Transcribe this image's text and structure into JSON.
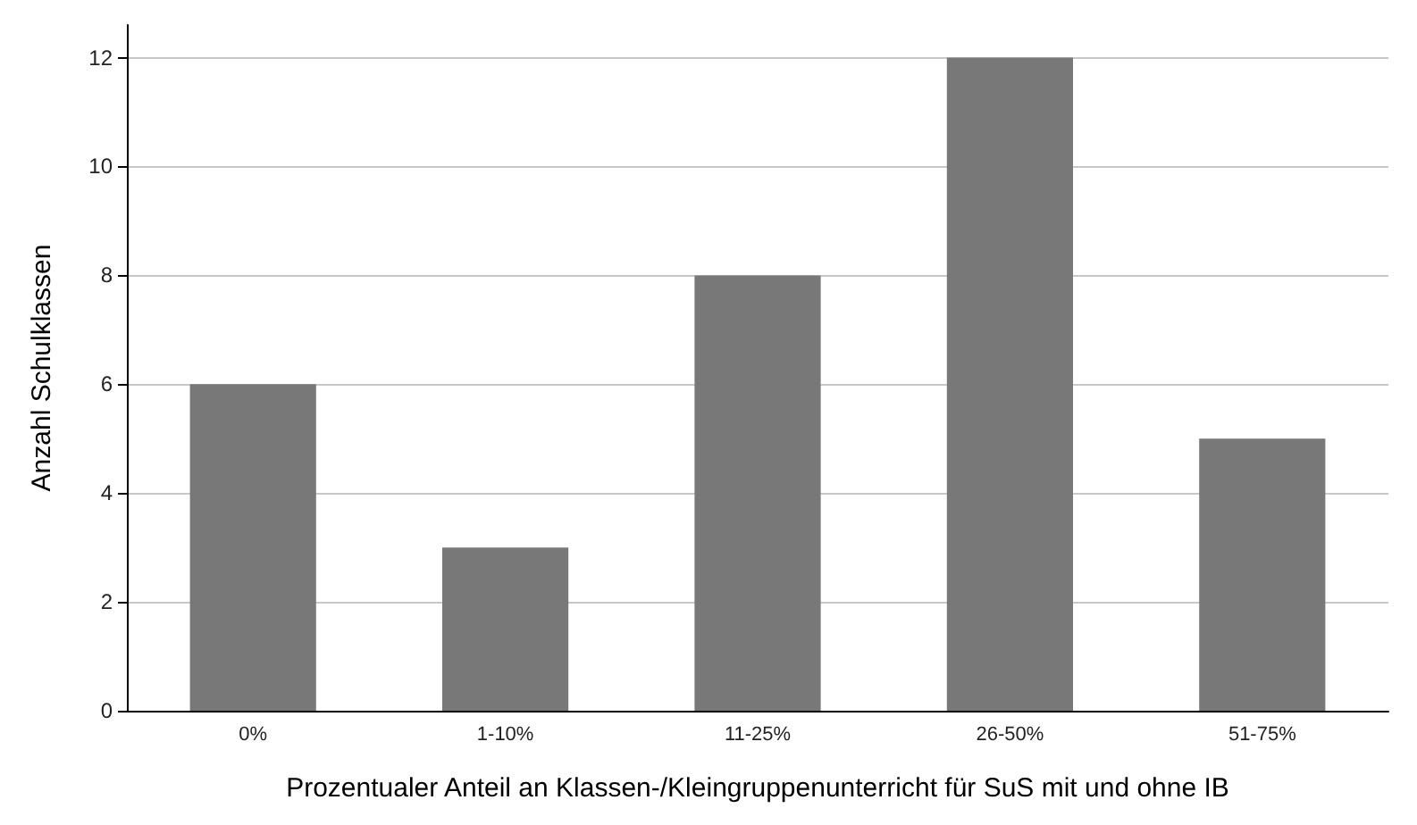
{
  "chart_data": {
    "type": "bar",
    "xlabel": "Prozentualer Anteil an Klassen-/Kleingruppenunterricht für SuS mit und ohne IB",
    "ylabel": "Anzahl Schulklassen",
    "categories": [
      "0%",
      "1-10%",
      "11-25%",
      "26-50%",
      "51-75%"
    ],
    "values": [
      6,
      3,
      8,
      12,
      5
    ],
    "color": "#787878",
    "ylim": [
      0,
      12.6
    ],
    "yticks": [
      0,
      2,
      4,
      6,
      8,
      10,
      12
    ],
    "grid": "y"
  }
}
